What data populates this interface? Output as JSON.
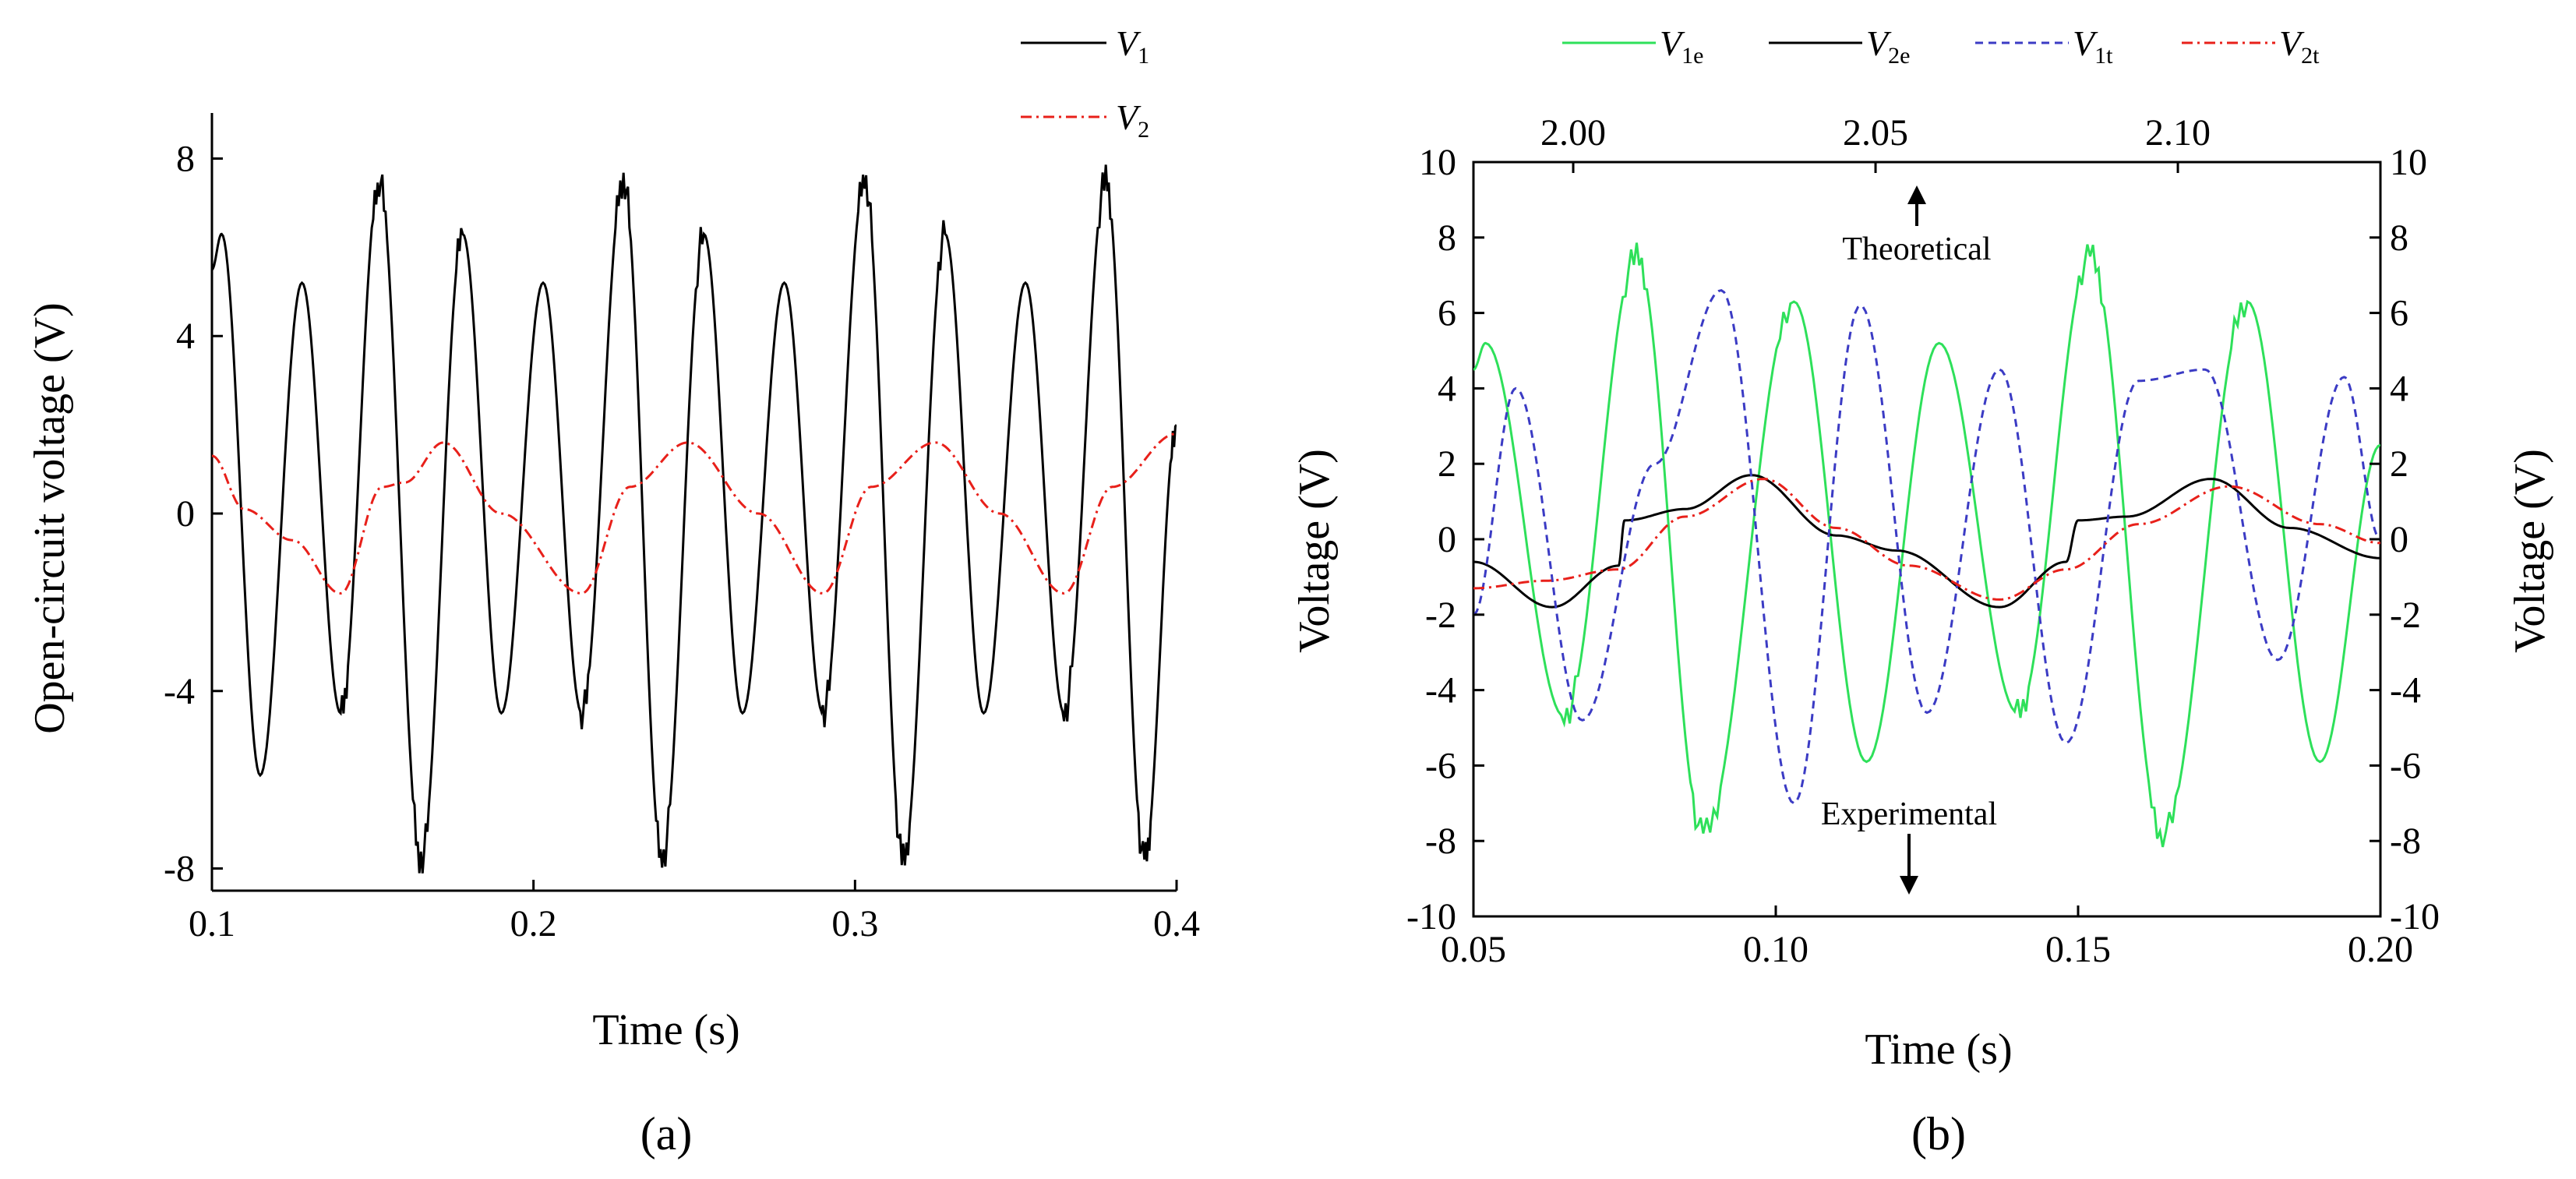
{
  "chart_data": [
    {
      "type": "line",
      "panel_label": "(a)",
      "xlabel": "Time (s)",
      "ylabel": "Open-circuit voltage (V)",
      "xlim": [
        0.1,
        0.4
      ],
      "ylim": [
        -8.5,
        8.5
      ],
      "xticks": [
        0.1,
        0.2,
        0.3,
        0.4
      ],
      "xtick_labels": [
        "0.1",
        "0.2",
        "0.3",
        "0.4"
      ],
      "yticks": [
        -8,
        -4,
        0,
        4,
        8
      ],
      "ytick_labels": [
        "-8",
        "-4",
        "0",
        "4",
        "8"
      ],
      "legend_position": "top-right",
      "series": [
        {
          "name": "V1",
          "legend_main": "V",
          "legend_sub": "1",
          "color": "#000000",
          "dash": "solid",
          "x": [
            0.1,
            0.103,
            0.115,
            0.128,
            0.14,
            0.152,
            0.165,
            0.178,
            0.19,
            0.203,
            0.215,
            0.228,
            0.24,
            0.253,
            0.265,
            0.278,
            0.29,
            0.303,
            0.315,
            0.328,
            0.34,
            0.353,
            0.365,
            0.378,
            0.39,
            0.4
          ],
          "values": [
            5.5,
            6.3,
            -5.9,
            5.2,
            -4.5,
            7.5,
            -7.8,
            6.3,
            -4.5,
            5.2,
            -4.5,
            7.5,
            -7.8,
            6.3,
            -4.5,
            5.2,
            -4.5,
            7.5,
            -7.8,
            6.3,
            -4.5,
            5.2,
            -4.5,
            7.5,
            -7.8,
            2.0
          ]
        },
        {
          "name": "V2",
          "legend_main": "V",
          "legend_sub": "2",
          "color": "#e8201a",
          "dash": "dashdot",
          "x": [
            0.1,
            0.11,
            0.125,
            0.14,
            0.153,
            0.16,
            0.172,
            0.19,
            0.215,
            0.23,
            0.248,
            0.27,
            0.29,
            0.305,
            0.325,
            0.345,
            0.365,
            0.38,
            0.4
          ],
          "values": [
            1.3,
            0.1,
            -0.6,
            -1.8,
            0.6,
            0.7,
            1.6,
            0.0,
            -1.8,
            0.6,
            1.6,
            0.0,
            -1.8,
            0.6,
            1.6,
            0.0,
            -1.8,
            0.6,
            1.8
          ]
        }
      ]
    },
    {
      "type": "line",
      "panel_label": "(b)",
      "xlabel": "Time (s)",
      "ylabel": "Voltage (V)",
      "ylabel_right": "Voltage (V)",
      "xlim": [
        0.05,
        0.2
      ],
      "x2lim": [
        1.9835,
        2.1335
      ],
      "ylim": [
        -10,
        10
      ],
      "xticks": [
        0.05,
        0.1,
        0.15,
        0.2
      ],
      "xtick_labels": [
        "0.05",
        "0.10",
        "0.15",
        "0.20"
      ],
      "x2ticks": [
        2.0,
        2.05,
        2.1
      ],
      "x2tick_labels": [
        "2.00",
        "2.05",
        "2.10"
      ],
      "yticks": [
        -10,
        -8,
        -6,
        -4,
        -2,
        0,
        2,
        4,
        6,
        8,
        10
      ],
      "ytick_labels": [
        "-10",
        "-8",
        "-6",
        "-4",
        "-2",
        "0",
        "2",
        "4",
        "6",
        "8",
        "10"
      ],
      "annotations": [
        "Theoretical",
        "Experimental"
      ],
      "legend_position": "top",
      "series": [
        {
          "name": "V1e",
          "legend_main": "V",
          "legend_sub": "1e",
          "color": "#2ee05a",
          "dash": "solid",
          "x": [
            0.05,
            0.052,
            0.065,
            0.077,
            0.088,
            0.103,
            0.115,
            0.127,
            0.14,
            0.152,
            0.164,
            0.178,
            0.19,
            0.2
          ],
          "values": [
            4.5,
            5.2,
            -4.7,
            7.5,
            -7.8,
            6.3,
            -5.9,
            5.2,
            -4.6,
            7.5,
            -7.8,
            6.3,
            -5.9,
            2.5
          ]
        },
        {
          "name": "V2e",
          "legend_main": "V",
          "legend_sub": "2e",
          "color": "#000000",
          "dash": "solid",
          "x": [
            0.05,
            0.063,
            0.074,
            0.075,
            0.085,
            0.096,
            0.11,
            0.12,
            0.137,
            0.148,
            0.15,
            0.158,
            0.172,
            0.185,
            0.2
          ],
          "values": [
            -0.6,
            -1.8,
            -0.7,
            0.5,
            0.8,
            1.7,
            0.1,
            -0.3,
            -1.8,
            -0.6,
            0.5,
            0.6,
            1.6,
            0.3,
            -0.5
          ]
        },
        {
          "name": "V1t",
          "legend_main": "V",
          "legend_sub": "1t",
          "color": "#3b3bc4",
          "dash": "dashed",
          "x": [
            0.05,
            0.057,
            0.068,
            0.08,
            0.091,
            0.103,
            0.114,
            0.125,
            0.137,
            0.148,
            0.16,
            0.171,
            0.183,
            0.194,
            0.2
          ],
          "values": [
            -2.0,
            4.0,
            -4.8,
            2.0,
            6.6,
            -7.0,
            6.2,
            -4.6,
            4.5,
            -5.4,
            4.2,
            4.5,
            -3.2,
            4.3,
            0.0
          ]
        },
        {
          "name": "V2t",
          "legend_main": "V",
          "legend_sub": "2t",
          "color": "#e8201a",
          "dash": "dashdot",
          "x": [
            0.05,
            0.062,
            0.074,
            0.085,
            0.098,
            0.11,
            0.122,
            0.137,
            0.148,
            0.16,
            0.175,
            0.19,
            0.2
          ],
          "values": [
            -1.3,
            -1.1,
            -0.8,
            0.6,
            1.6,
            0.3,
            -0.7,
            -1.6,
            -0.8,
            0.4,
            1.4,
            0.4,
            -0.1
          ]
        }
      ]
    }
  ]
}
